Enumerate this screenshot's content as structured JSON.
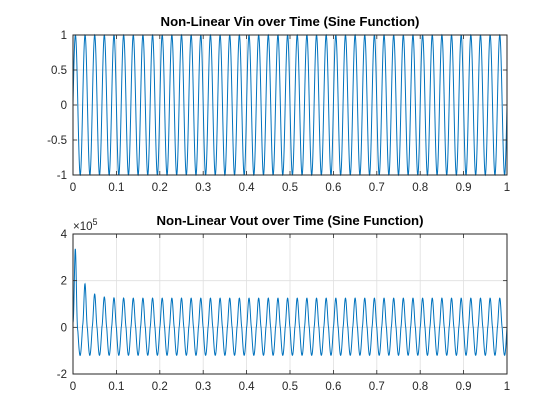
{
  "chart_data": [
    {
      "type": "line",
      "title": "Non-Linear Vin over Time (Sine Function)",
      "xlabel": "",
      "ylabel": "",
      "xlim": [
        0,
        1
      ],
      "ylim": [
        -1,
        1
      ],
      "xticks": [
        "0",
        "0.1",
        "0.2",
        "0.3",
        "0.4",
        "0.5",
        "0.6",
        "0.7",
        "0.8",
        "0.9",
        "1"
      ],
      "yticks": [
        "-1",
        "-0.5",
        "0",
        "0.5",
        "1"
      ],
      "grid": true,
      "color": "#0072BD",
      "series": [
        {
          "function": "sin(2*pi*f*t)",
          "frequency_hz": 45,
          "amplitude": 1,
          "t_range": [
            0,
            1
          ]
        }
      ]
    },
    {
      "type": "line",
      "title": "Non-Linear Vout over Time (Sine Function)",
      "xlabel": "",
      "ylabel": "",
      "xlim": [
        0,
        1
      ],
      "ylim": [
        -200000,
        400000
      ],
      "y_exponent_label": "×10",
      "y_exponent": "5",
      "xticks": [
        "0",
        "0.1",
        "0.2",
        "0.3",
        "0.4",
        "0.5",
        "0.6",
        "0.7",
        "0.8",
        "0.9",
        "1"
      ],
      "yticks": [
        "-2",
        "0",
        "2",
        "4"
      ],
      "grid": true,
      "color": "#0072BD",
      "series": [
        {
          "frequency_hz": 45,
          "initial_peak": 410000,
          "second_peak": 150000,
          "steady_positive_peak": 125000,
          "steady_negative_peak": -120000,
          "t_range": [
            0,
            1
          ]
        }
      ]
    }
  ]
}
